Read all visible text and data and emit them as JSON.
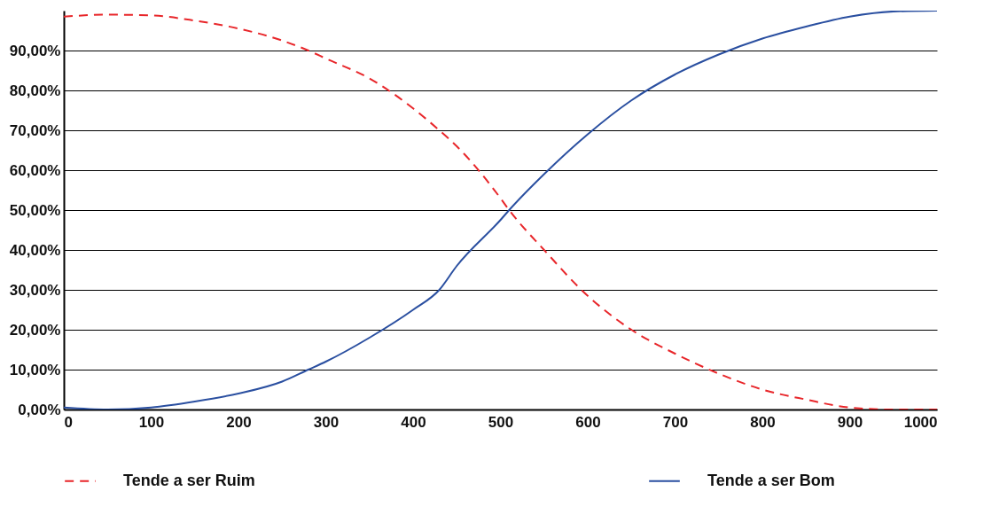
{
  "chart_data": {
    "type": "line",
    "x": [
      0,
      50,
      100,
      150,
      200,
      250,
      280,
      300,
      350,
      400,
      430,
      450,
      500,
      510,
      550,
      600,
      650,
      700,
      750,
      800,
      850,
      900,
      950,
      1000
    ],
    "series": [
      {
        "name": "Tende a ser Ruim",
        "color": "#e8262a",
        "line_style": "dashed",
        "values": [
          98.5,
          99,
          98.8,
          97.5,
          95.5,
          92.5,
          90,
          88,
          83,
          75.5,
          70,
          66,
          53,
          50,
          40,
          28.5,
          20,
          14,
          9,
          5,
          2.5,
          0.5,
          0,
          0
        ]
      },
      {
        "name": "Tende a ser Bom",
        "color": "#2a4fa0",
        "line_style": "solid",
        "values": [
          0.5,
          0,
          0.5,
          2,
          4,
          7,
          10,
          12,
          18,
          25,
          30,
          36,
          47.5,
          50,
          59,
          69,
          77.5,
          84,
          89,
          93,
          96,
          98.5,
          99.8,
          100
        ]
      }
    ],
    "xlim": [
      0,
      1000
    ],
    "xticks": [
      0,
      100,
      200,
      300,
      400,
      500,
      600,
      700,
      800,
      900,
      1000
    ],
    "ylim": [
      0,
      100
    ],
    "yticks": [
      {
        "value": 0,
        "label": "0,00%"
      },
      {
        "value": 10,
        "label": "10,00%"
      },
      {
        "value": 20,
        "label": "20,00%"
      },
      {
        "value": 30,
        "label": "30,00%"
      },
      {
        "value": 40,
        "label": "40,00%"
      },
      {
        "value": 50,
        "label": "50,00%"
      },
      {
        "value": 60,
        "label": "60,00%"
      },
      {
        "value": 70,
        "label": "70,00%"
      },
      {
        "value": 80,
        "label": "80,00%"
      },
      {
        "value": 90,
        "label": "90,00%"
      }
    ],
    "grid": "y",
    "legend": "bottom",
    "marker": "none"
  }
}
